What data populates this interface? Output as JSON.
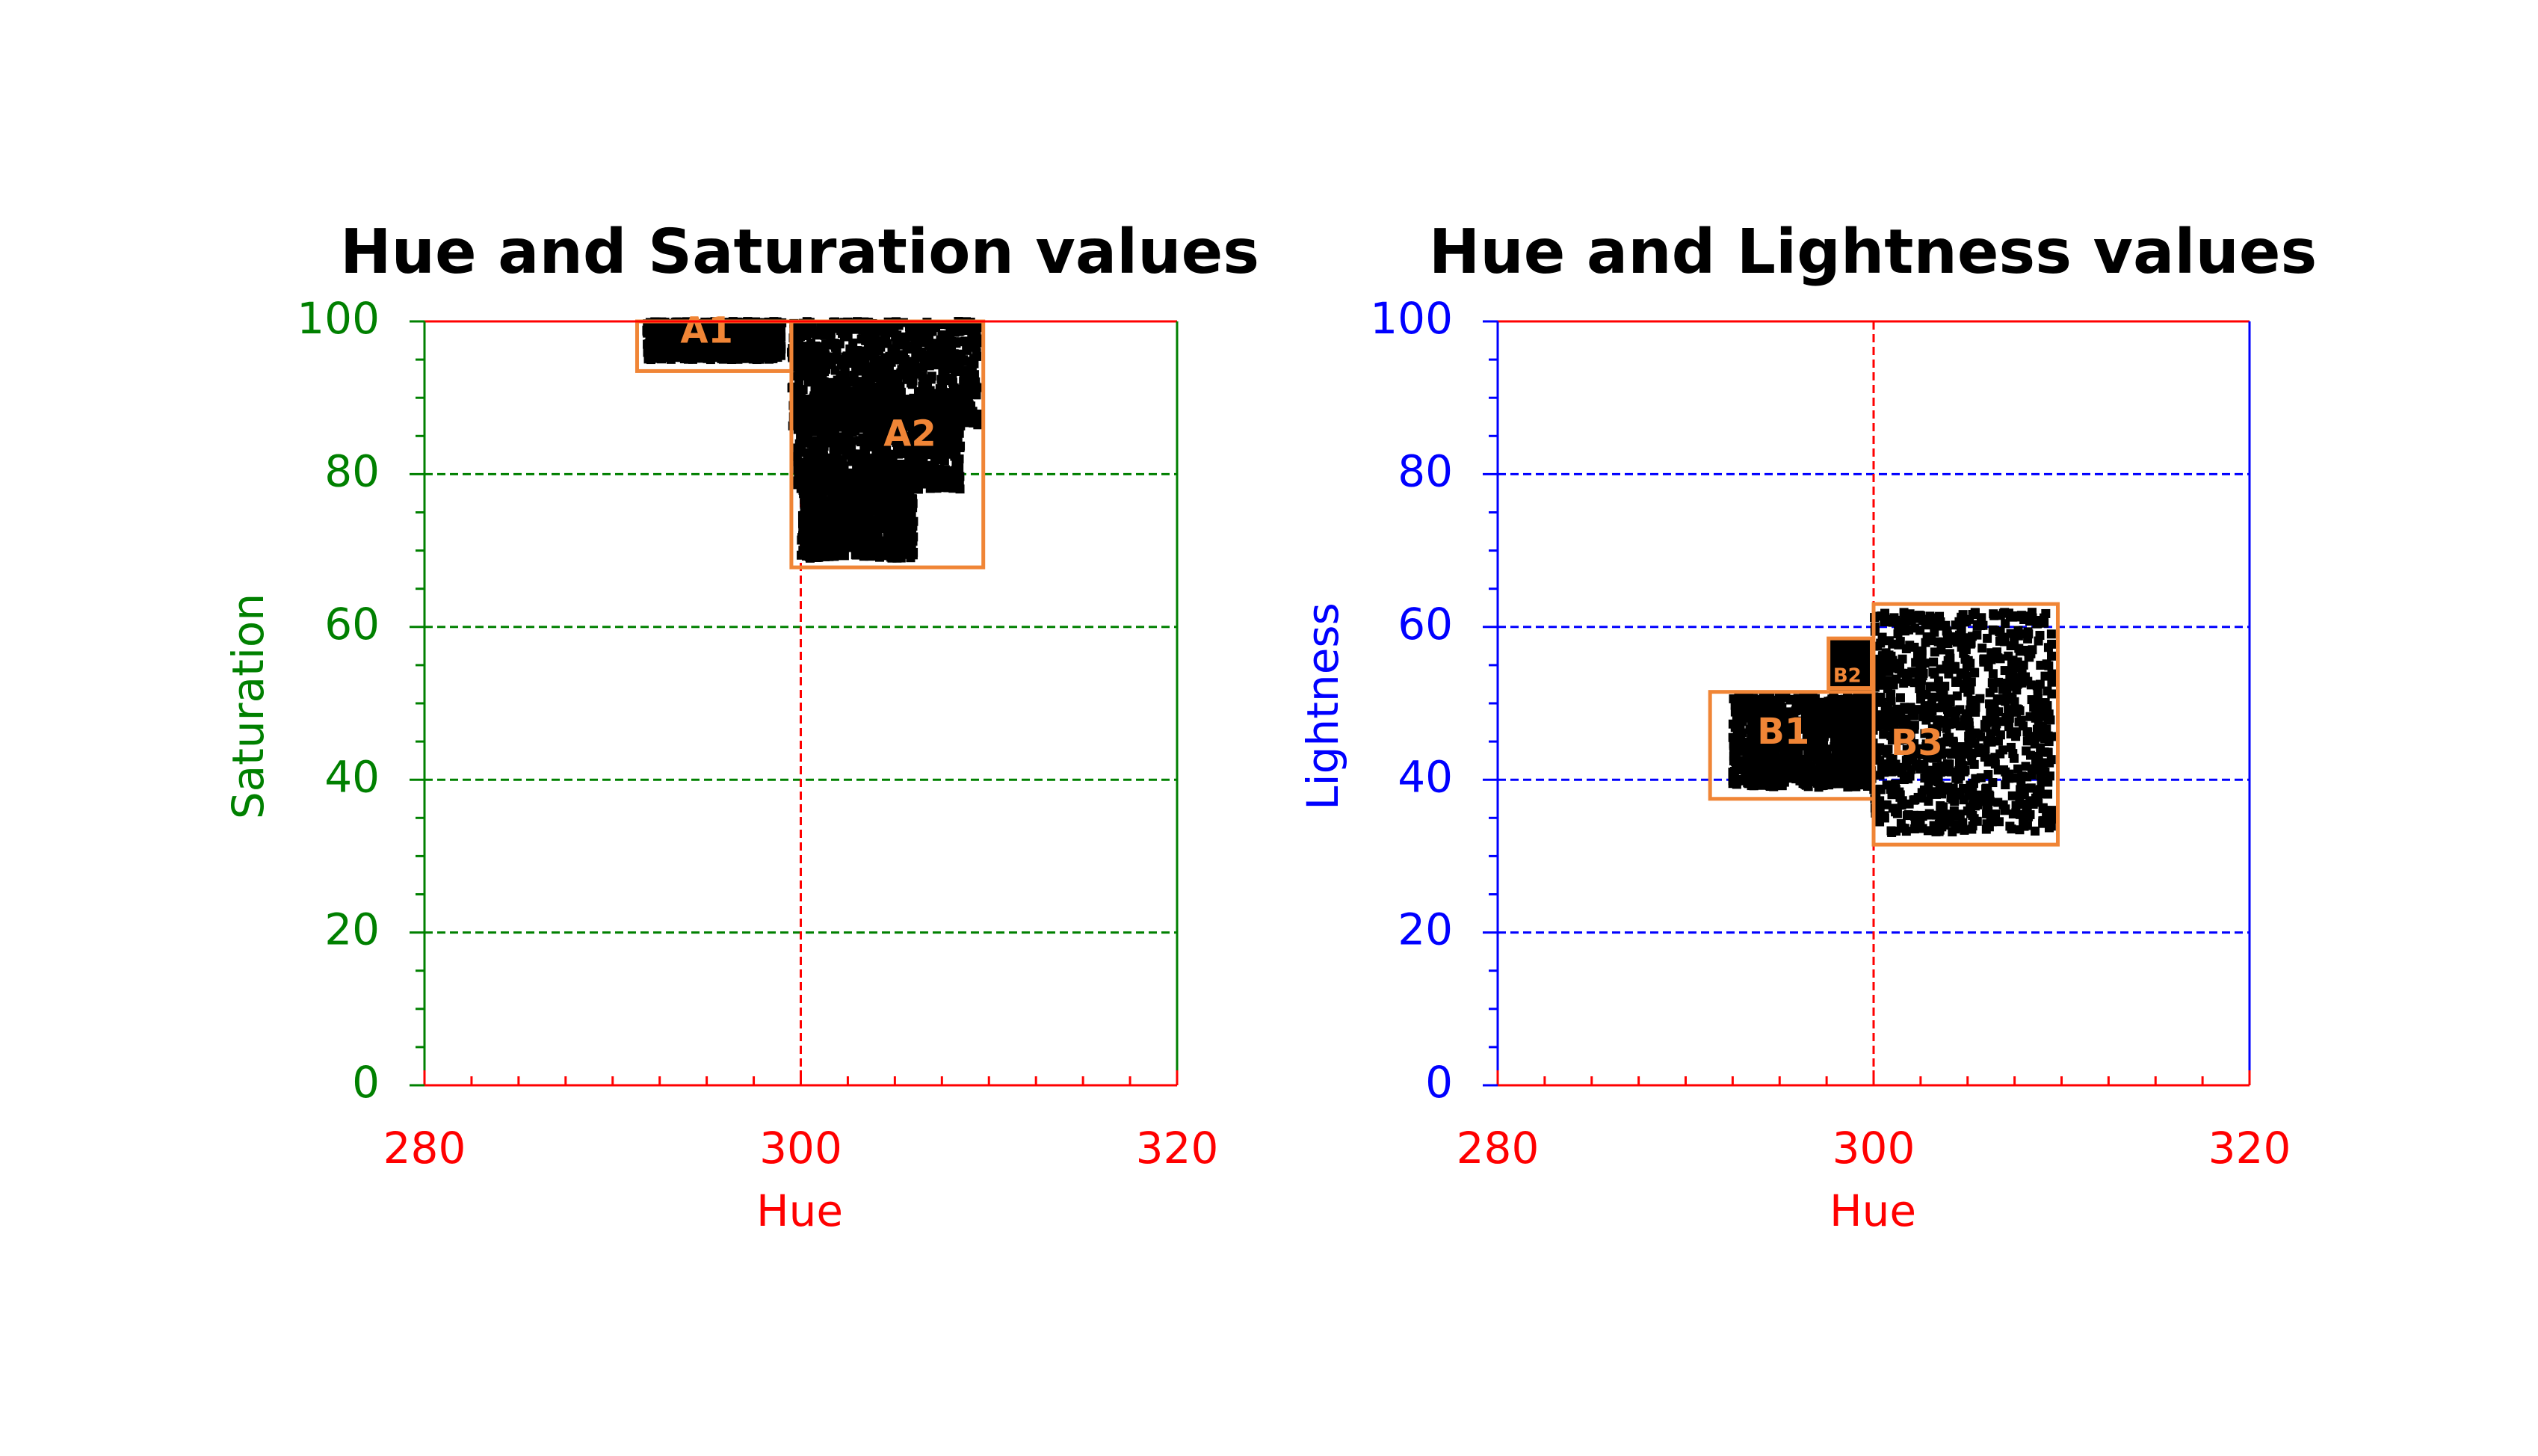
{
  "chart_data": [
    {
      "type": "scatter",
      "title": "Hue and Saturation values",
      "xlabel": "Hue",
      "ylabel": "Saturation",
      "xlim": [
        280,
        320
      ],
      "ylim": [
        0,
        100
      ],
      "xticks": [
        "280",
        "300",
        "320"
      ],
      "yticks": [
        "0",
        "20",
        "40",
        "60",
        "80",
        "100"
      ],
      "grid": "dashed horizontal lines at y-ticks; dashed vertical line at x=300",
      "colors": {
        "x_axis": "#ff0000",
        "y_axis": "#008000",
        "grid": "#008000",
        "points": "#000000",
        "regions": "#f08536"
      },
      "regions": [
        {
          "label": "A1",
          "x": [
            291.3,
            299.5
          ],
          "y": [
            93.5,
            100
          ],
          "label_at": [
            295,
            98.5
          ]
        },
        {
          "label": "A2",
          "x": [
            299.5,
            309.7
          ],
          "y": [
            67.8,
            100
          ],
          "label_at": [
            305.8,
            85
          ]
        }
      ],
      "point_clusters": [
        {
          "x": [
            291.8,
            299
          ],
          "y": [
            95,
            100
          ]
        },
        {
          "x": [
            299.5,
            309.5
          ],
          "y": [
            86,
            100
          ]
        },
        {
          "x": [
            299.8,
            308.5
          ],
          "y": [
            78,
            90
          ]
        },
        {
          "x": [
            300,
            306
          ],
          "y": [
            69,
            80
          ]
        }
      ]
    },
    {
      "type": "scatter",
      "title": "Hue and Lightness values",
      "xlabel": "Hue",
      "ylabel": "Lightness",
      "xlim": [
        280,
        320
      ],
      "ylim": [
        0,
        100
      ],
      "xticks": [
        "280",
        "300",
        "320"
      ],
      "yticks": [
        "0",
        "20",
        "40",
        "60",
        "80",
        "100"
      ],
      "grid": "dashed horizontal lines at y-ticks; dashed vertical line at x=300",
      "colors": {
        "x_axis": "#ff0000",
        "y_axis": "#0000ff",
        "grid": "#0000ff",
        "points": "#000000",
        "regions": "#f08536"
      },
      "regions": [
        {
          "label": "B1",
          "x": [
            291.3,
            300
          ],
          "y": [
            37.5,
            51.5
          ],
          "label_at": [
            295.2,
            46
          ]
        },
        {
          "label": "B2",
          "x": [
            297.6,
            299.9
          ],
          "y": [
            52,
            58.5
          ],
          "label_at": [
            298.6,
            53.5
          ]
        },
        {
          "label": "B3",
          "x": [
            300,
            309.8
          ],
          "y": [
            31.5,
            63
          ],
          "label_at": [
            302.3,
            44.5
          ]
        }
      ],
      "point_clusters": [
        {
          "x": [
            292.5,
            300
          ],
          "y": [
            39,
            51
          ]
        },
        {
          "x": [
            297.8,
            299.8
          ],
          "y": [
            52,
            58
          ]
        },
        {
          "x": [
            300,
            309.5
          ],
          "y": [
            33,
            62
          ]
        }
      ]
    }
  ]
}
